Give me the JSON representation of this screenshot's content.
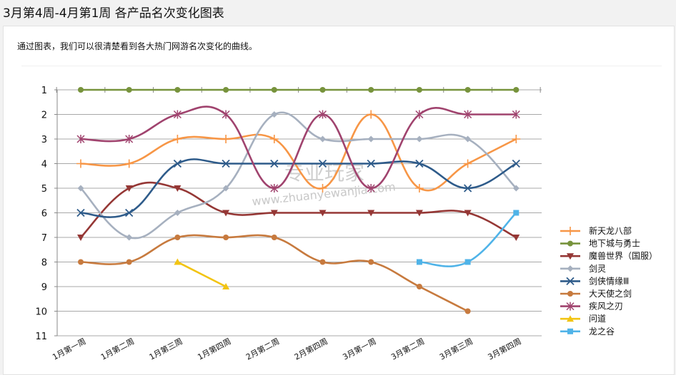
{
  "page": {
    "title": "3月第4周-4月第1周 各产品名次变化图表",
    "intro": "通过图表，我们可以很清楚看到各大热门网游名次变化的曲线。"
  },
  "watermark": {
    "cn": "专业玩家",
    "url": "www.zhuanyewanjia.com"
  },
  "chart_data": {
    "type": "line",
    "title": "",
    "xlabel": "",
    "ylabel": "",
    "categories": [
      "1月第一周",
      "1月第二周",
      "1月第三周",
      "1月第四周",
      "2月第二周",
      "2月第四周",
      "3月第一周",
      "3月第二周",
      "3月第三周",
      "3月第四周"
    ],
    "y_ticks": [
      "1",
      "2",
      "3",
      "4",
      "5",
      "6",
      "7",
      "8",
      "9",
      "10",
      "11"
    ],
    "ylim": [
      1,
      11
    ],
    "y_inverted": true,
    "grid": "horizontal",
    "legend_position": "right",
    "series": [
      {
        "name": "新天龙八部",
        "color": "#f79646",
        "marker": "plus",
        "values": [
          4,
          4,
          3,
          3,
          3,
          5,
          2,
          5,
          4,
          3
        ]
      },
      {
        "name": "地下城与勇士",
        "color": "#77933c",
        "marker": "circle",
        "values": [
          1,
          1,
          1,
          1,
          1,
          1,
          1,
          1,
          1,
          1
        ]
      },
      {
        "name": "魔兽世界（国服）",
        "color": "#953735",
        "marker": "triangle-down",
        "values": [
          7,
          5,
          5,
          6,
          6,
          6,
          6,
          6,
          6,
          7
        ]
      },
      {
        "name": "剑灵",
        "color": "#a6b0bf",
        "marker": "diamond",
        "values": [
          5,
          7,
          6,
          5,
          2,
          3,
          3,
          3,
          3,
          5
        ]
      },
      {
        "name": "剑侠情缘Ⅲ",
        "color": "#2e5b8a",
        "marker": "cross",
        "values": [
          6,
          6,
          4,
          4,
          4,
          4,
          4,
          4,
          5,
          4
        ]
      },
      {
        "name": "大天使之剑",
        "color": "#c77a3e",
        "marker": "circle",
        "values": [
          8,
          8,
          7,
          7,
          7,
          8,
          8,
          9,
          10,
          null
        ]
      },
      {
        "name": "疾风之刃",
        "color": "#a0436e",
        "marker": "star",
        "values": [
          3,
          3,
          2,
          2,
          5,
          2,
          5,
          2,
          2,
          2
        ]
      },
      {
        "name": "问道",
        "color": "#f2c413",
        "marker": "triangle-up",
        "values": [
          null,
          null,
          8,
          9,
          null,
          null,
          null,
          null,
          null,
          null
        ]
      },
      {
        "name": "龙之谷",
        "color": "#4fb3e8",
        "marker": "square",
        "values": [
          null,
          null,
          null,
          null,
          null,
          null,
          null,
          8,
          8,
          6
        ]
      }
    ]
  }
}
